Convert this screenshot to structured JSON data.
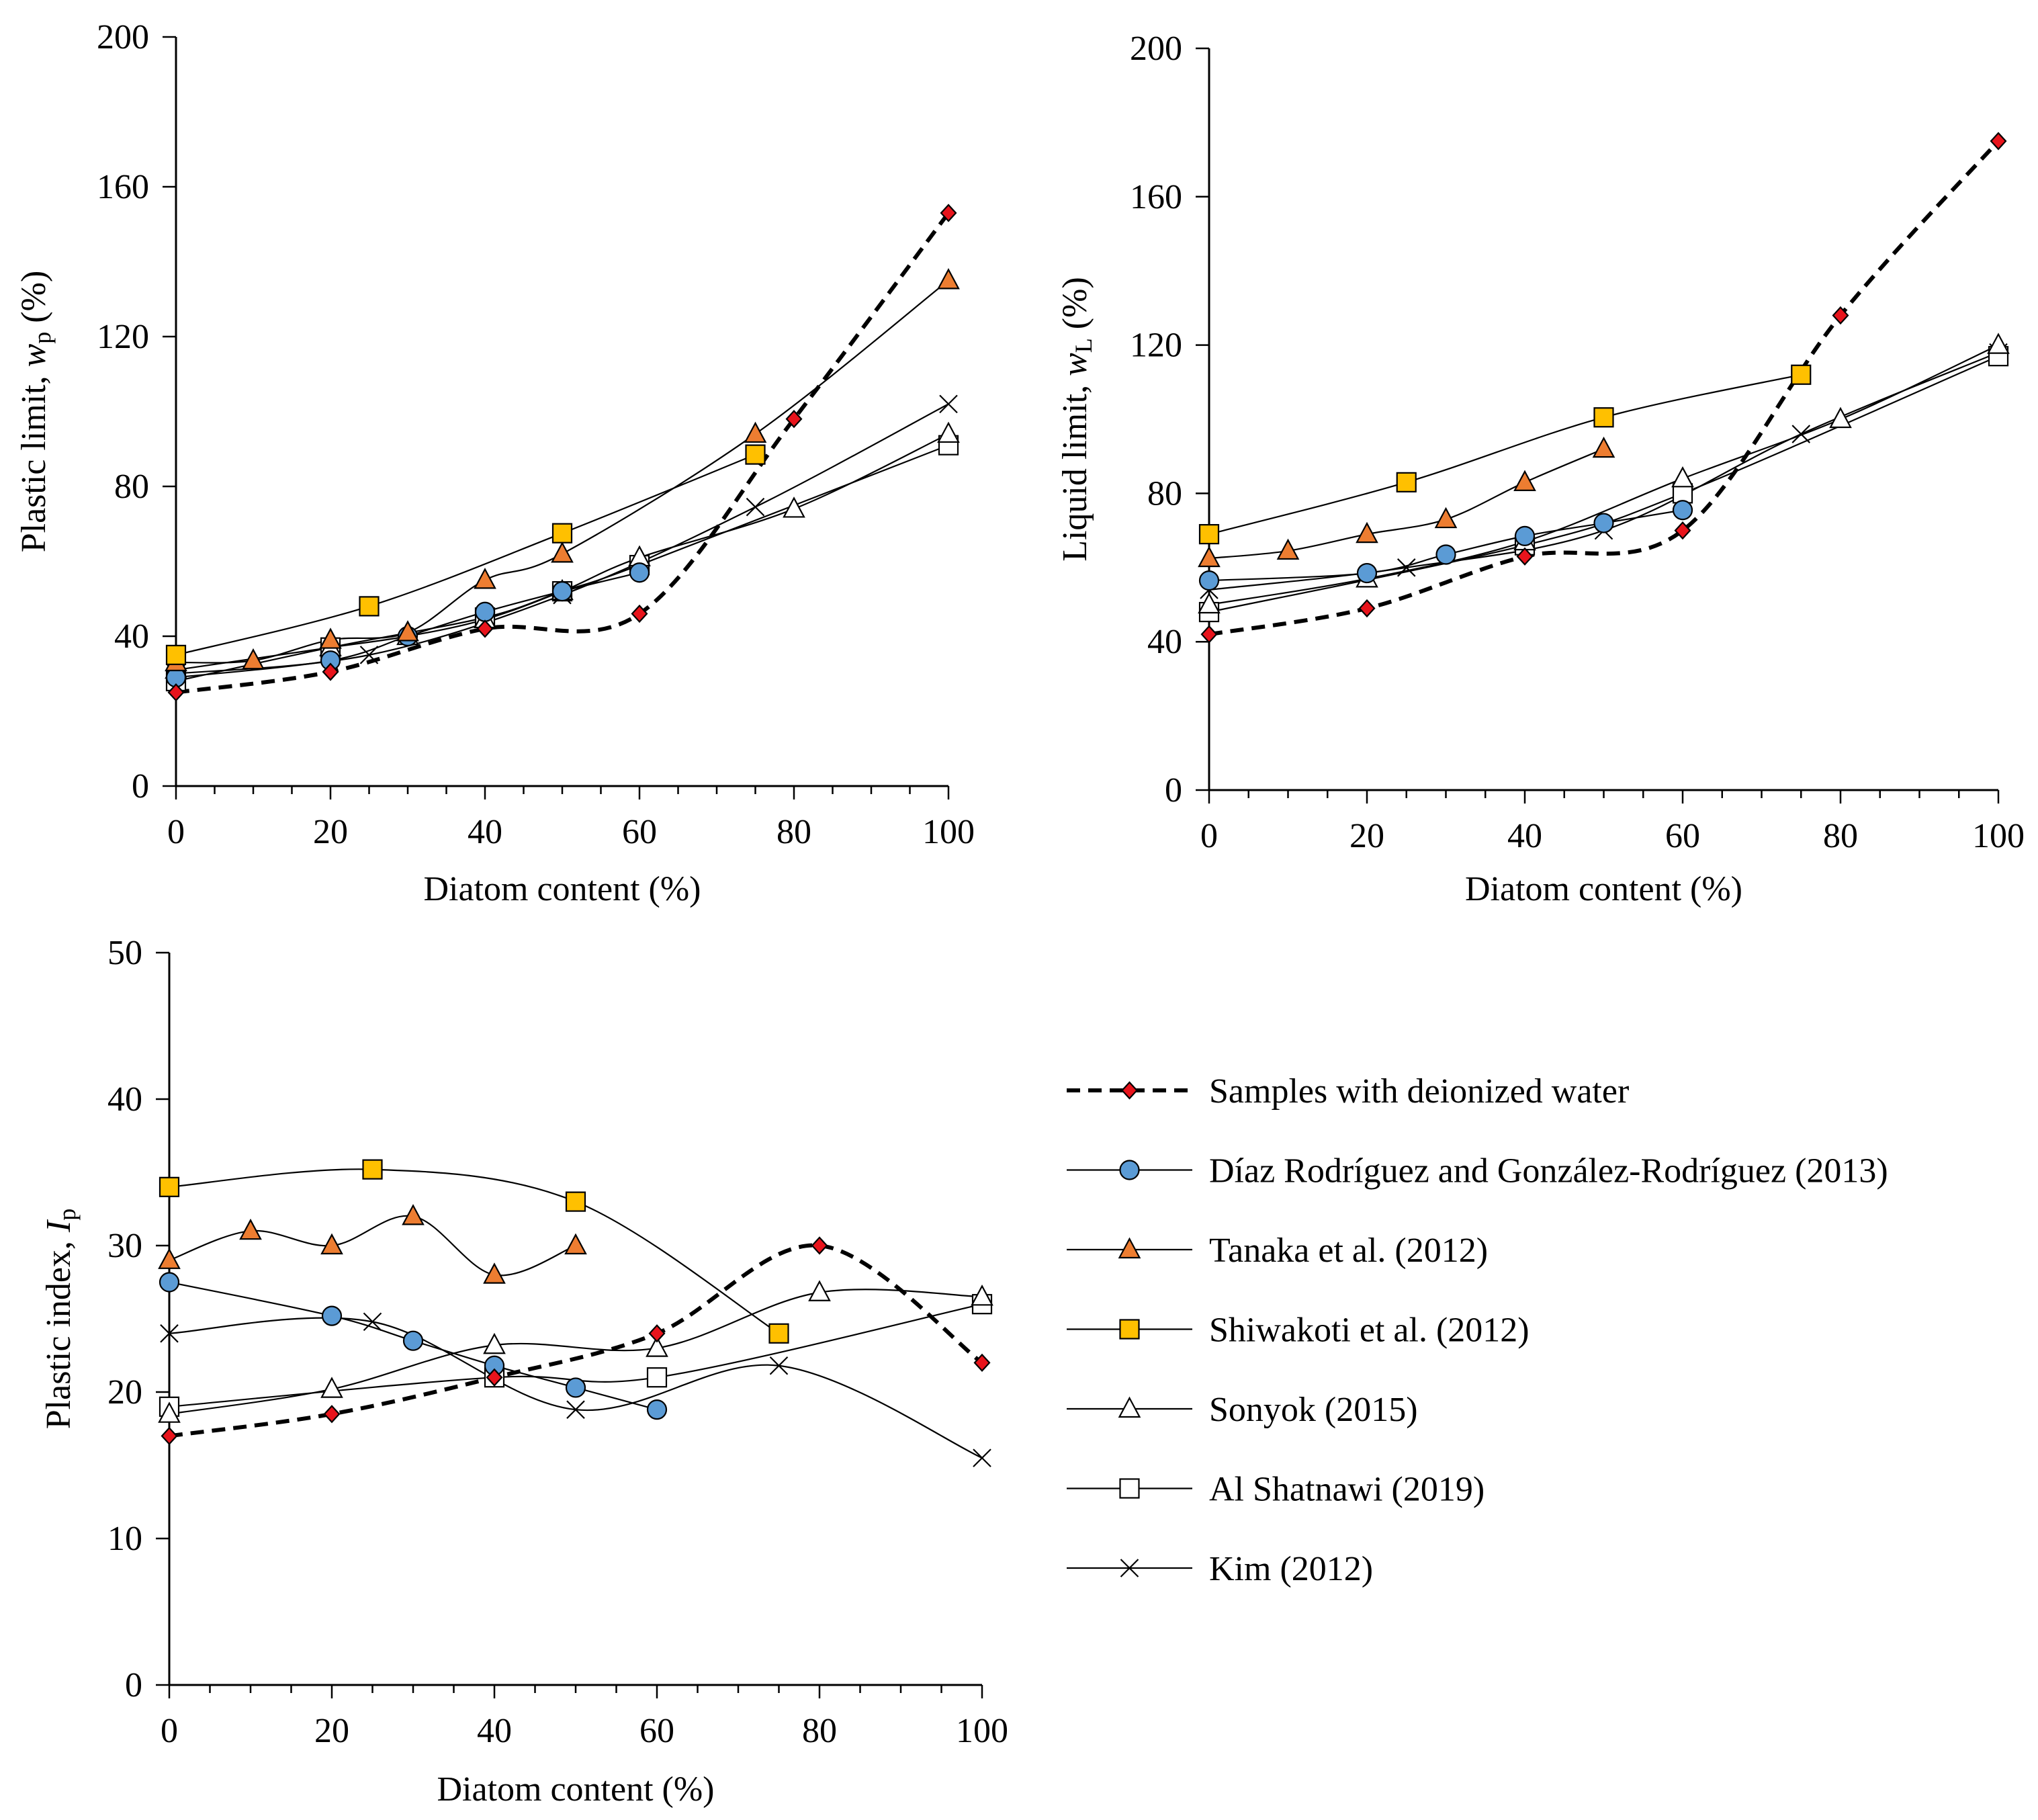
{
  "legend": {
    "series_labels": [
      "Samples with deionized water",
      "Díaz Rodríguez and González-Rodríguez (2013)",
      "Tanaka et al. (2012)",
      "Shiwakoti et al. (2012)",
      "Sonyok (2015)",
      "Al Shatnawi (2019)",
      "Kim (2012)"
    ]
  },
  "colors": {
    "deionized_fill": "#e8141c",
    "diaz_fill": "#5b9bd5",
    "tanaka_fill": "#ed7d31",
    "shiwakoti_fill": "#ffc000",
    "open_fill": "#ffffff",
    "line": "#000000"
  },
  "chart_data": [
    {
      "id": "wp",
      "type": "line",
      "title": "",
      "xlabel": "Diatom content (%)",
      "ylabel_prefix": "Plastic limit, ",
      "ylabel_var": "w",
      "ylabel_sub": "p",
      "ylabel_suffix": " (%)",
      "xlim": [
        0,
        100
      ],
      "ylim": [
        0,
        200
      ],
      "xticks": [
        "0",
        "20",
        "40",
        "60",
        "80",
        "100"
      ],
      "yticks": [
        "0",
        "40",
        "80",
        "120",
        "160",
        "200"
      ],
      "series": [
        {
          "name": "Samples with deionized water",
          "x": [
            0,
            20,
            40,
            60,
            80,
            100
          ],
          "y": [
            25,
            30.5,
            42,
            46,
            98,
            153
          ]
        },
        {
          "name": "Díaz Rodríguez and González-Rodríguez (2013)",
          "x": [
            0,
            20,
            30,
            40,
            50,
            60
          ],
          "y": [
            29,
            33.5,
            40,
            46.5,
            52,
            57
          ]
        },
        {
          "name": "Tanaka et al. (2012)",
          "x": [
            0,
            10,
            20,
            30,
            40,
            50,
            75,
            100
          ],
          "y": [
            33,
            33.5,
            39,
            41,
            55,
            62,
            94,
            135
          ]
        },
        {
          "name": "Shiwakoti et al. (2012)",
          "x": [
            0,
            25,
            50,
            75
          ],
          "y": [
            35,
            48,
            67.5,
            88.5
          ]
        },
        {
          "name": "Sonyok (2015)",
          "x": [
            0,
            20,
            30,
            40,
            50,
            60,
            80,
            100
          ],
          "y": [
            31,
            37,
            40,
            44.5,
            52,
            61,
            74,
            94
          ]
        },
        {
          "name": "Al Shatnawi (2019)",
          "x": [
            0,
            20,
            40,
            50,
            60,
            100
          ],
          "y": [
            28,
            37,
            45,
            52,
            59,
            91
          ]
        },
        {
          "name": "Kim (2012)",
          "x": [
            0,
            25,
            50,
            75,
            100
          ],
          "y": [
            30,
            35,
            51,
            74.5,
            102
          ]
        }
      ]
    },
    {
      "id": "wl",
      "type": "line",
      "title": "",
      "xlabel": "Diatom content  (%)",
      "ylabel_prefix": "Liquid limit, ",
      "ylabel_var": "w",
      "ylabel_sub": "L",
      "ylabel_suffix": " (%)",
      "xlim": [
        0,
        100
      ],
      "ylim": [
        0,
        200
      ],
      "xticks": [
        "0",
        "20",
        "40",
        "60",
        "80",
        "100"
      ],
      "yticks": [
        "0",
        "40",
        "80",
        "120",
        "160",
        "200"
      ],
      "series": [
        {
          "name": "Samples with deionized water",
          "x": [
            0,
            20,
            40,
            60,
            80,
            100
          ],
          "y": [
            42,
            49,
            63,
            70,
            128,
            175
          ]
        },
        {
          "name": "Díaz Rodríguez and González-Rodríguez (2013)",
          "x": [
            0,
            20,
            30,
            40,
            50,
            60
          ],
          "y": [
            56.5,
            58.5,
            63.5,
            68.5,
            72,
            75.5
          ]
        },
        {
          "name": "Tanaka et al. (2012)",
          "x": [
            0,
            10,
            20,
            30,
            40,
            50
          ],
          "y": [
            62.5,
            64.5,
            69,
            73,
            83,
            92
          ]
        },
        {
          "name": "Shiwakoti et al. (2012)",
          "x": [
            0,
            25,
            50,
            75
          ],
          "y": [
            69,
            83,
            100.5,
            112
          ]
        },
        {
          "name": "Sonyok (2015)",
          "x": [
            0,
            20,
            40,
            60,
            80,
            100
          ],
          "y": [
            50,
            57,
            67,
            84,
            100,
            120
          ]
        },
        {
          "name": "Al Shatnawi (2019)",
          "x": [
            0,
            40,
            60,
            100
          ],
          "y": [
            48,
            66,
            80,
            117
          ]
        },
        {
          "name": "Kim (2012)",
          "x": [
            0,
            25,
            50,
            75,
            100
          ],
          "y": [
            54,
            60,
            70,
            96,
            118
          ]
        }
      ]
    },
    {
      "id": "ip",
      "type": "line",
      "title": "",
      "xlabel": "Diatom content (%)",
      "ylabel_prefix": "Plastic index, ",
      "ylabel_var": "I",
      "ylabel_sub": "p",
      "ylabel_suffix": "",
      "xlim": [
        0,
        100
      ],
      "ylim": [
        0,
        50
      ],
      "xticks": [
        "0",
        "20",
        "40",
        "60",
        "80",
        "100"
      ],
      "yticks": [
        "0",
        "10",
        "20",
        "30",
        "40",
        "50"
      ],
      "series": [
        {
          "name": "Samples with deionized water",
          "x": [
            0,
            20,
            40,
            60,
            80,
            100
          ],
          "y": [
            17,
            18.5,
            21,
            24,
            30,
            22
          ]
        },
        {
          "name": "Díaz Rodríguez and González-Rodríguez (2013)",
          "x": [
            0,
            20,
            30,
            40,
            50,
            60
          ],
          "y": [
            27.5,
            25.2,
            23.5,
            21.8,
            20.3,
            18.8
          ]
        },
        {
          "name": "Tanaka et al. (2012)",
          "x": [
            0,
            10,
            20,
            30,
            40,
            50
          ],
          "y": [
            29,
            31,
            30,
            32,
            28,
            30
          ]
        },
        {
          "name": "Shiwakoti et al. (2012)",
          "x": [
            0,
            25,
            50,
            75
          ],
          "y": [
            34,
            35.2,
            33,
            24
          ]
        },
        {
          "name": "Sonyok (2015)",
          "x": [
            0,
            20,
            40,
            60,
            80,
            100
          ],
          "y": [
            18.5,
            20.2,
            23.2,
            23,
            26.8,
            26.5
          ]
        },
        {
          "name": "Al Shatnawi (2019)",
          "x": [
            0,
            40,
            60,
            100
          ],
          "y": [
            19,
            21,
            21,
            26
          ]
        },
        {
          "name": "Kim (2012)",
          "x": [
            0,
            25,
            50,
            75,
            100
          ],
          "y": [
            24,
            24.8,
            18.8,
            21.8,
            15.5
          ]
        }
      ]
    }
  ]
}
